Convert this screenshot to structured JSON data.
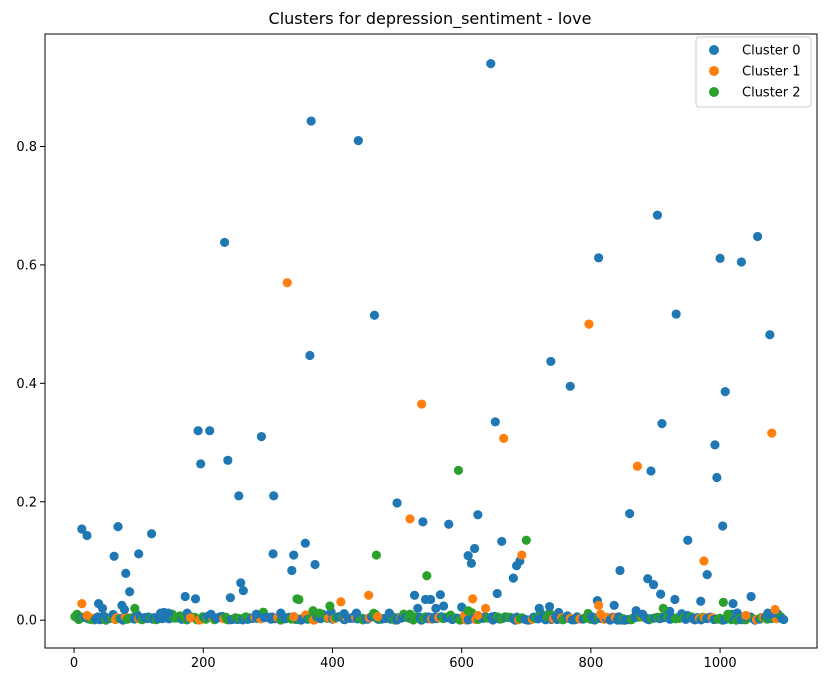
{
  "chart_data": {
    "type": "scatter",
    "title": "Clusters for depression_sentiment - love",
    "xlabel": "",
    "ylabel": "",
    "xlim": [
      -45,
      1150
    ],
    "ylim": [
      -0.047,
      0.99
    ],
    "xticks": [
      0,
      200,
      400,
      600,
      800,
      1000
    ],
    "yticks": [
      0.0,
      0.2,
      0.4,
      0.6,
      0.8
    ],
    "xtick_labels": [
      "0",
      "200",
      "400",
      "600",
      "800",
      "1000"
    ],
    "ytick_labels": [
      "0.0",
      "0.2",
      "0.4",
      "0.6",
      "0.8"
    ],
    "grid": false,
    "legend_position": "top-right",
    "baseline_points": "Dense band of points from every cluster along y ≈ 0 to 0.03 across x = 0 to 1100",
    "series": [
      {
        "name": "Cluster 0",
        "color": "#1f77b4",
        "points": [
          [
            12,
            0.154
          ],
          [
            20,
            0.143
          ],
          [
            62,
            0.108
          ],
          [
            68,
            0.158
          ],
          [
            80,
            0.079
          ],
          [
            86,
            0.048
          ],
          [
            100,
            0.112
          ],
          [
            120,
            0.146
          ],
          [
            172,
            0.04
          ],
          [
            188,
            0.036
          ],
          [
            192,
            0.32
          ],
          [
            196,
            0.264
          ],
          [
            210,
            0.32
          ],
          [
            233,
            0.638
          ],
          [
            238,
            0.27
          ],
          [
            242,
            0.038
          ],
          [
            255,
            0.21
          ],
          [
            258,
            0.063
          ],
          [
            262,
            0.05
          ],
          [
            290,
            0.31
          ],
          [
            308,
            0.112
          ],
          [
            309,
            0.21
          ],
          [
            337,
            0.084
          ],
          [
            340,
            0.11
          ],
          [
            358,
            0.13
          ],
          [
            365,
            0.447
          ],
          [
            367,
            0.843
          ],
          [
            373,
            0.094
          ],
          [
            440,
            0.81
          ],
          [
            465,
            0.515
          ],
          [
            500,
            0.198
          ],
          [
            527,
            0.042
          ],
          [
            540,
            0.166
          ],
          [
            544,
            0.035
          ],
          [
            552,
            0.035
          ],
          [
            567,
            0.043
          ],
          [
            580,
            0.162
          ],
          [
            610,
            0.109
          ],
          [
            615,
            0.096
          ],
          [
            620,
            0.121
          ],
          [
            625,
            0.178
          ],
          [
            645,
            0.94
          ],
          [
            652,
            0.335
          ],
          [
            655,
            0.045
          ],
          [
            662,
            0.133
          ],
          [
            680,
            0.071
          ],
          [
            685,
            0.092
          ],
          [
            690,
            0.1
          ],
          [
            738,
            0.437
          ],
          [
            768,
            0.395
          ],
          [
            810,
            0.033
          ],
          [
            812,
            0.612
          ],
          [
            845,
            0.084
          ],
          [
            860,
            0.18
          ],
          [
            888,
            0.07
          ],
          [
            893,
            0.252
          ],
          [
            897,
            0.06
          ],
          [
            903,
            0.684
          ],
          [
            908,
            0.044
          ],
          [
            910,
            0.332
          ],
          [
            930,
            0.035
          ],
          [
            932,
            0.517
          ],
          [
            950,
            0.135
          ],
          [
            970,
            0.032
          ],
          [
            980,
            0.077
          ],
          [
            992,
            0.296
          ],
          [
            995,
            0.241
          ],
          [
            1000,
            0.611
          ],
          [
            1004,
            0.159
          ],
          [
            1008,
            0.386
          ],
          [
            1020,
            0.028
          ],
          [
            1033,
            0.605
          ],
          [
            1048,
            0.04
          ],
          [
            1058,
            0.648
          ],
          [
            1077,
            0.482
          ],
          [
            1078,
            0.01
          ],
          [
            38,
            0.028
          ],
          [
            44,
            0.02
          ],
          [
            74,
            0.025
          ],
          [
            78,
            0.018
          ],
          [
            134,
            0.012
          ],
          [
            146,
            0.012
          ],
          [
            175,
            0.012
          ],
          [
            212,
            0.01
          ],
          [
            282,
            0.01
          ],
          [
            320,
            0.012
          ],
          [
            418,
            0.011
          ],
          [
            437,
            0.012
          ],
          [
            488,
            0.012
          ],
          [
            532,
            0.02
          ],
          [
            560,
            0.02
          ],
          [
            572,
            0.024
          ],
          [
            600,
            0.022
          ],
          [
            720,
            0.02
          ],
          [
            736,
            0.023
          ],
          [
            836,
            0.025
          ],
          [
            870,
            0.016
          ],
          [
            880,
            0.01
          ],
          [
            922,
            0.015
          ],
          [
            1018,
            0.01
          ],
          [
            1074,
            0.012
          ]
        ]
      },
      {
        "name": "Cluster 1",
        "color": "#ff7f0e",
        "points": [
          [
            12,
            0.028
          ],
          [
            330,
            0.57
          ],
          [
            413,
            0.031
          ],
          [
            456,
            0.042
          ],
          [
            520,
            0.171
          ],
          [
            538,
            0.365
          ],
          [
            617,
            0.036
          ],
          [
            637,
            0.02
          ],
          [
            665,
            0.307
          ],
          [
            693,
            0.11
          ],
          [
            797,
            0.5
          ],
          [
            812,
            0.025
          ],
          [
            872,
            0.26
          ],
          [
            975,
            0.1
          ],
          [
            1080,
            0.316
          ],
          [
            1085,
            0.018
          ],
          [
            20,
            0.008
          ],
          [
            180,
            0.004
          ],
          [
            340,
            0.006
          ],
          [
            470,
            0.006
          ],
          [
            625,
            0.008
          ],
          [
            815,
            0.01
          ],
          [
            1040,
            0.008
          ]
        ]
      },
      {
        "name": "Cluster 2",
        "color": "#2ca02c",
        "points": [
          [
            345,
            0.036
          ],
          [
            348,
            0.035
          ],
          [
            468,
            0.11
          ],
          [
            546,
            0.075
          ],
          [
            595,
            0.253
          ],
          [
            700,
            0.135
          ],
          [
            1005,
            0.03
          ],
          [
            396,
            0.024
          ],
          [
            370,
            0.016
          ],
          [
            610,
            0.016
          ],
          [
            912,
            0.02
          ],
          [
            94,
            0.02
          ],
          [
            380,
            0.012
          ],
          [
            520,
            0.01
          ],
          [
            1012,
            0.01
          ]
        ]
      }
    ]
  }
}
